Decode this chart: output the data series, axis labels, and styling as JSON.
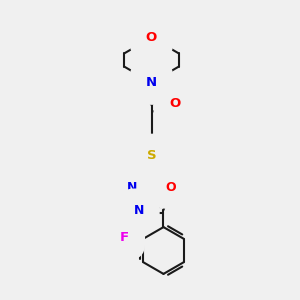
{
  "background_color": "#f0f0f0",
  "bond_color": "#1a1a1a",
  "bond_width": 1.5,
  "atom_colors": {
    "O": "#ff0000",
    "N": "#0000ee",
    "S": "#ccaa00",
    "F": "#ee00ee",
    "C": "#1a1a1a"
  },
  "figsize": [
    3.0,
    3.0
  ],
  "dpi": 100,
  "xlim": [
    0,
    10
  ],
  "ylim": [
    0,
    10
  ]
}
